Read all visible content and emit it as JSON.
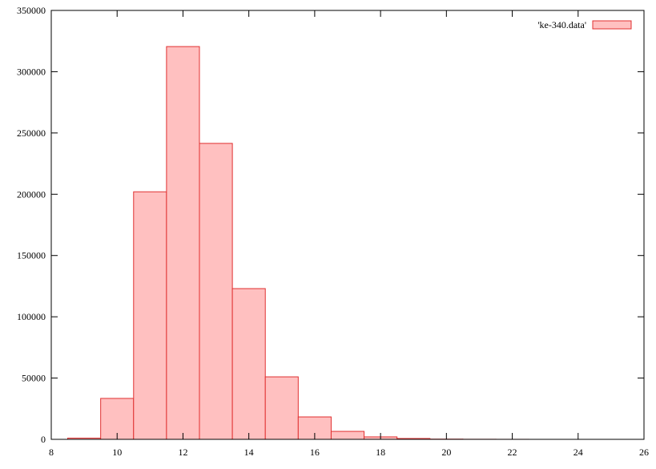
{
  "chart_data": {
    "type": "histogram",
    "bins": [
      8.5,
      9.5,
      10.5,
      11.5,
      12.5,
      13.5,
      14.5,
      15.5,
      16.5,
      17.5,
      18.5,
      19.5,
      20.5,
      21.5,
      22.5
    ],
    "series": [
      {
        "name": "'ke-340.data'",
        "color": "#ffc0c0",
        "edgecolor": "#e03030",
        "values": [
          1000,
          33400,
          202000,
          320500,
          241500,
          123000,
          51000,
          18300,
          6500,
          2000,
          700,
          200,
          80,
          30
        ]
      }
    ],
    "xlim": [
      8,
      26
    ],
    "xticks": [
      8,
      10,
      12,
      14,
      16,
      18,
      20,
      22,
      24,
      26
    ],
    "ylim": [
      0,
      350000
    ],
    "yticks": [
      0,
      50000,
      100000,
      150000,
      200000,
      250000,
      300000,
      350000
    ],
    "legend": "upper right"
  }
}
